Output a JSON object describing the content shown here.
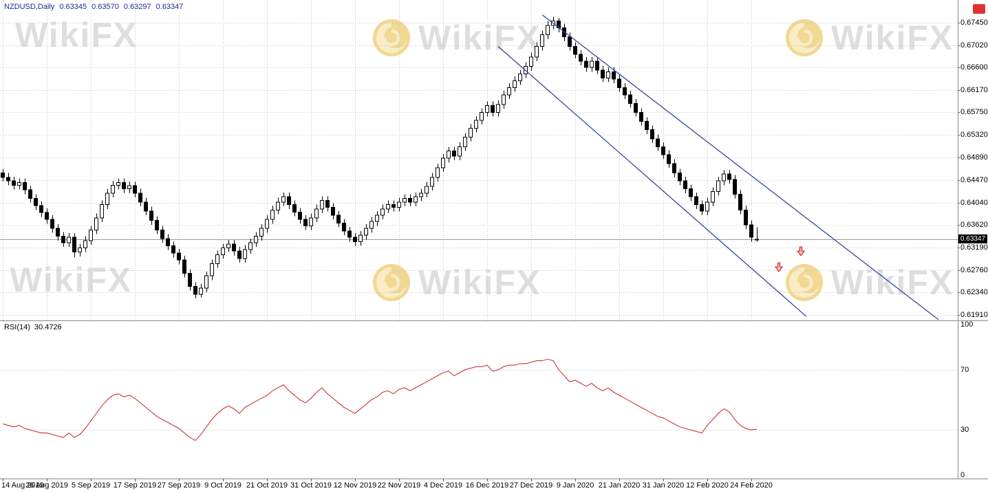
{
  "header": {
    "symbol_period": "NZDUSD,Daily",
    "open": "0.63345",
    "high": "0.63570",
    "low": "0.63297",
    "close": "0.63347"
  },
  "rsi_label": {
    "name": "RSI(14)",
    "value": "30.4726"
  },
  "price_badge": "0.63347",
  "watermark": {
    "text": "WikiFX"
  },
  "colors": {
    "bull_fill": "#ffffff",
    "bear_fill": "#000000",
    "candle_outline": "#000000",
    "trendline": "#3344a8",
    "rsi_line": "#cc3333",
    "grid": "#c4c4c4",
    "separator": "#888888",
    "axis_text": "#000000",
    "header_text": "#1b2a8f",
    "watermark_text": "#d6d6d6",
    "watermark_gold": "#e7ba3b",
    "watermark_gold_light": "#f7dd94",
    "arrow": "#cc2222",
    "arrow_fill": "#f6caca",
    "badge_bg": "#000000",
    "badge_text": "#ffffff",
    "corner_icon": "#e03030",
    "current_price_line": "#9a9a9a"
  },
  "chart_data": [
    {
      "type": "candlestick",
      "symbol": "NZDUSD",
      "timeframe": "Daily",
      "title": "NZDUSD,Daily",
      "current_price": 0.63347,
      "ylim": [
        0.6181,
        0.6788
      ],
      "y_axis_labels": [
        "0.67450",
        "0.67020",
        "0.66600",
        "0.66170",
        "0.65750",
        "0.65320",
        "0.64890",
        "0.64470",
        "0.64040",
        "0.63620",
        "0.63190",
        "0.62760",
        "0.62340",
        "0.61910"
      ],
      "x_tick_labels": [
        "14 Aug 2019",
        "26 Aug 2019",
        "5 Sep 2019",
        "17 Sep 2019",
        "27 Sep 2019",
        "9 Oct 2019",
        "21 Oct 2019",
        "31 Oct 2019",
        "12 Nov 2019",
        "22 Nov 2019",
        "4 Dec 2019",
        "16 Dec 2019",
        "27 Dec 2019",
        "9 Jan 2020",
        "21 Jan 2020",
        "31 Jan 2020",
        "12 Feb 2020",
        "24 Feb 2020"
      ],
      "x_tick_indices": [
        0,
        8,
        16,
        24,
        32,
        40,
        48,
        56,
        64,
        72,
        80,
        88,
        96,
        104,
        112,
        120,
        128,
        136
      ],
      "candles": [
        [
          0.646,
          0.6468,
          0.6444,
          0.6452
        ],
        [
          0.6452,
          0.646,
          0.6437,
          0.6445
        ],
        [
          0.6445,
          0.6453,
          0.6429,
          0.6437
        ],
        [
          0.6437,
          0.645,
          0.6429,
          0.6442
        ],
        [
          0.6442,
          0.645,
          0.642,
          0.6428
        ],
        [
          0.6428,
          0.6436,
          0.6404,
          0.6412
        ],
        [
          0.6412,
          0.642,
          0.639,
          0.6398
        ],
        [
          0.6398,
          0.6406,
          0.6377,
          0.6385
        ],
        [
          0.6385,
          0.6393,
          0.6364,
          0.6372
        ],
        [
          0.6372,
          0.638,
          0.6347,
          0.6355
        ],
        [
          0.6355,
          0.6363,
          0.6332,
          0.634
        ],
        [
          0.634,
          0.6348,
          0.632,
          0.6328
        ],
        [
          0.6328,
          0.6346,
          0.632,
          0.6338
        ],
        [
          0.6338,
          0.6346,
          0.63,
          0.631
        ],
        [
          0.631,
          0.6326,
          0.6302,
          0.6318
        ],
        [
          0.6318,
          0.634,
          0.631,
          0.6332
        ],
        [
          0.6332,
          0.636,
          0.6324,
          0.6352
        ],
        [
          0.6352,
          0.6383,
          0.6344,
          0.6375
        ],
        [
          0.6375,
          0.6408,
          0.6367,
          0.64
        ],
        [
          0.64,
          0.643,
          0.6392,
          0.6422
        ],
        [
          0.6422,
          0.6445,
          0.6414,
          0.6437
        ],
        [
          0.6437,
          0.645,
          0.6429,
          0.6442
        ],
        [
          0.6442,
          0.645,
          0.6422,
          0.643
        ],
        [
          0.643,
          0.6444,
          0.6422,
          0.6436
        ],
        [
          0.6436,
          0.6444,
          0.6414,
          0.6422
        ],
        [
          0.6422,
          0.643,
          0.6397,
          0.6405
        ],
        [
          0.6405,
          0.6413,
          0.638,
          0.6388
        ],
        [
          0.6388,
          0.6396,
          0.6362,
          0.637
        ],
        [
          0.637,
          0.6378,
          0.6344,
          0.6352
        ],
        [
          0.6352,
          0.636,
          0.6328,
          0.6336
        ],
        [
          0.6336,
          0.6344,
          0.6314,
          0.6322
        ],
        [
          0.6322,
          0.633,
          0.63,
          0.6308
        ],
        [
          0.6308,
          0.6316,
          0.6287,
          0.6295
        ],
        [
          0.6295,
          0.6303,
          0.6262,
          0.627
        ],
        [
          0.627,
          0.6278,
          0.6237,
          0.6245
        ],
        [
          0.6245,
          0.6253,
          0.6222,
          0.623
        ],
        [
          0.623,
          0.625,
          0.6224,
          0.6242
        ],
        [
          0.6242,
          0.6273,
          0.6234,
          0.6265
        ],
        [
          0.6265,
          0.6296,
          0.6257,
          0.6288
        ],
        [
          0.6288,
          0.6313,
          0.628,
          0.6305
        ],
        [
          0.6305,
          0.6326,
          0.6297,
          0.6318
        ],
        [
          0.6318,
          0.6333,
          0.631,
          0.6325
        ],
        [
          0.6325,
          0.6333,
          0.6304,
          0.6312
        ],
        [
          0.6312,
          0.632,
          0.629,
          0.6298
        ],
        [
          0.6298,
          0.6323,
          0.629,
          0.6315
        ],
        [
          0.6315,
          0.6336,
          0.6307,
          0.6328
        ],
        [
          0.6328,
          0.6348,
          0.632,
          0.634
        ],
        [
          0.634,
          0.6363,
          0.6332,
          0.6355
        ],
        [
          0.6355,
          0.638,
          0.6347,
          0.6372
        ],
        [
          0.6372,
          0.6398,
          0.6364,
          0.639
        ],
        [
          0.639,
          0.6413,
          0.6382,
          0.6405
        ],
        [
          0.6405,
          0.6423,
          0.6397,
          0.6415
        ],
        [
          0.6415,
          0.6423,
          0.6392,
          0.64
        ],
        [
          0.64,
          0.6408,
          0.6378,
          0.6386
        ],
        [
          0.6386,
          0.6394,
          0.6364,
          0.6372
        ],
        [
          0.6372,
          0.638,
          0.6352,
          0.636
        ],
        [
          0.636,
          0.6383,
          0.6352,
          0.6375
        ],
        [
          0.6375,
          0.64,
          0.6367,
          0.6392
        ],
        [
          0.6392,
          0.6416,
          0.6384,
          0.6408
        ],
        [
          0.6408,
          0.6416,
          0.6387,
          0.6395
        ],
        [
          0.6395,
          0.6403,
          0.6372,
          0.638
        ],
        [
          0.638,
          0.6388,
          0.6357,
          0.6365
        ],
        [
          0.6365,
          0.6373,
          0.6342,
          0.635
        ],
        [
          0.635,
          0.6358,
          0.633,
          0.6338
        ],
        [
          0.6338,
          0.6346,
          0.6322,
          0.633
        ],
        [
          0.633,
          0.635,
          0.6322,
          0.6342
        ],
        [
          0.6342,
          0.6363,
          0.6334,
          0.6355
        ],
        [
          0.6355,
          0.6376,
          0.6347,
          0.6368
        ],
        [
          0.6368,
          0.6388,
          0.636,
          0.638
        ],
        [
          0.638,
          0.64,
          0.6372,
          0.6392
        ],
        [
          0.6392,
          0.6408,
          0.6384,
          0.64
        ],
        [
          0.64,
          0.6408,
          0.6387,
          0.6395
        ],
        [
          0.6395,
          0.6413,
          0.6387,
          0.6405
        ],
        [
          0.6405,
          0.642,
          0.6397,
          0.6412
        ],
        [
          0.6412,
          0.642,
          0.6397,
          0.6405
        ],
        [
          0.6405,
          0.6423,
          0.6397,
          0.6415
        ],
        [
          0.6415,
          0.643,
          0.6407,
          0.6422
        ],
        [
          0.6422,
          0.6443,
          0.6414,
          0.6435
        ],
        [
          0.6435,
          0.646,
          0.6427,
          0.6452
        ],
        [
          0.6452,
          0.6478,
          0.6444,
          0.647
        ],
        [
          0.647,
          0.6496,
          0.6462,
          0.6488
        ],
        [
          0.6488,
          0.651,
          0.648,
          0.6502
        ],
        [
          0.6502,
          0.651,
          0.6484,
          0.6492
        ],
        [
          0.6492,
          0.6518,
          0.6484,
          0.651
        ],
        [
          0.651,
          0.6536,
          0.6502,
          0.6528
        ],
        [
          0.6528,
          0.6553,
          0.652,
          0.6545
        ],
        [
          0.6545,
          0.6568,
          0.6537,
          0.656
        ],
        [
          0.656,
          0.6583,
          0.6552,
          0.6575
        ],
        [
          0.6575,
          0.6596,
          0.6567,
          0.6588
        ],
        [
          0.6588,
          0.6596,
          0.6567,
          0.6575
        ],
        [
          0.6575,
          0.6598,
          0.6567,
          0.659
        ],
        [
          0.659,
          0.6616,
          0.6582,
          0.6608
        ],
        [
          0.6608,
          0.663,
          0.66,
          0.6622
        ],
        [
          0.6622,
          0.6643,
          0.6614,
          0.6635
        ],
        [
          0.6635,
          0.6656,
          0.6627,
          0.6648
        ],
        [
          0.6648,
          0.667,
          0.664,
          0.6662
        ],
        [
          0.6662,
          0.6688,
          0.6654,
          0.668
        ],
        [
          0.668,
          0.6708,
          0.6672,
          0.67
        ],
        [
          0.67,
          0.673,
          0.6692,
          0.6722
        ],
        [
          0.6722,
          0.6748,
          0.6714,
          0.674
        ],
        [
          0.674,
          0.6756,
          0.6732,
          0.6748
        ],
        [
          0.6748,
          0.6754,
          0.6727,
          0.6735
        ],
        [
          0.6735,
          0.6743,
          0.671,
          0.6718
        ],
        [
          0.6718,
          0.6726,
          0.6692,
          0.67
        ],
        [
          0.67,
          0.6708,
          0.6677,
          0.6685
        ],
        [
          0.6685,
          0.6693,
          0.6664,
          0.6672
        ],
        [
          0.6672,
          0.668,
          0.6652,
          0.666
        ],
        [
          0.666,
          0.668,
          0.6652,
          0.6672
        ],
        [
          0.6672,
          0.668,
          0.6647,
          0.6655
        ],
        [
          0.6655,
          0.6663,
          0.6632,
          0.664
        ],
        [
          0.664,
          0.666,
          0.6632,
          0.6652
        ],
        [
          0.6652,
          0.666,
          0.663,
          0.6638
        ],
        [
          0.6638,
          0.6646,
          0.6614,
          0.6622
        ],
        [
          0.6622,
          0.663,
          0.66,
          0.6608
        ],
        [
          0.6608,
          0.6616,
          0.6584,
          0.6592
        ],
        [
          0.6592,
          0.66,
          0.6567,
          0.6575
        ],
        [
          0.6575,
          0.6583,
          0.655,
          0.6558
        ],
        [
          0.6558,
          0.6566,
          0.6534,
          0.6542
        ],
        [
          0.6542,
          0.655,
          0.6517,
          0.6525
        ],
        [
          0.6525,
          0.6533,
          0.6502,
          0.651
        ],
        [
          0.651,
          0.6518,
          0.6487,
          0.6495
        ],
        [
          0.6495,
          0.6503,
          0.647,
          0.6478
        ],
        [
          0.6478,
          0.6486,
          0.6452,
          0.646
        ],
        [
          0.646,
          0.6468,
          0.6437,
          0.6445
        ],
        [
          0.6445,
          0.6453,
          0.6422,
          0.643
        ],
        [
          0.643,
          0.6438,
          0.6407,
          0.6415
        ],
        [
          0.6415,
          0.6423,
          0.6392,
          0.64
        ],
        [
          0.64,
          0.6408,
          0.638,
          0.6388
        ],
        [
          0.6388,
          0.6413,
          0.638,
          0.6405
        ],
        [
          0.6405,
          0.6433,
          0.6397,
          0.6425
        ],
        [
          0.6425,
          0.6453,
          0.6417,
          0.6445
        ],
        [
          0.6445,
          0.6466,
          0.6437,
          0.6458
        ],
        [
          0.6458,
          0.6466,
          0.644,
          0.6448
        ],
        [
          0.6448,
          0.6456,
          0.6412,
          0.642
        ],
        [
          0.642,
          0.6428,
          0.6382,
          0.639
        ],
        [
          0.639,
          0.6398,
          0.6354,
          0.6362
        ],
        [
          0.6362,
          0.637,
          0.633,
          0.6338
        ],
        [
          0.63345,
          0.6357,
          0.63297,
          0.63347
        ]
      ],
      "trendlines": [
        {
          "name": "upper-channel-line",
          "from_index": 98,
          "from_price": 0.676,
          "to_index": 170,
          "to_price": 0.6182
        },
        {
          "name": "lower-channel-line",
          "from_index": 90,
          "from_price": 0.67,
          "to_index": 146,
          "to_price": 0.6188
        }
      ],
      "arrows": [
        {
          "index": 141,
          "price": 0.6282,
          "direction": "down"
        },
        {
          "index": 145,
          "price": 0.6312,
          "direction": "down"
        }
      ]
    },
    {
      "type": "line",
      "name": "RSI(14)",
      "current_value": 30.4726,
      "ylim": [
        0,
        100
      ],
      "levels": [
        30,
        70
      ],
      "y_axis_labels": [
        "100",
        "70",
        "30",
        "0"
      ],
      "values": [
        34,
        33,
        32,
        33,
        31,
        30,
        29,
        28,
        28,
        27,
        26,
        25,
        28,
        25,
        27,
        31,
        36,
        41,
        46,
        50,
        53,
        54,
        52,
        53,
        51,
        48,
        45,
        42,
        39,
        37,
        35,
        33,
        31,
        28,
        25,
        23,
        27,
        32,
        37,
        41,
        44,
        46,
        44,
        41,
        45,
        47,
        49,
        51,
        53,
        56,
        58,
        60,
        56,
        53,
        50,
        48,
        51,
        55,
        58,
        54,
        51,
        48,
        45,
        43,
        41,
        44,
        47,
        50,
        52,
        55,
        56,
        54,
        57,
        58,
        56,
        58,
        60,
        62,
        64,
        66,
        68,
        69,
        66,
        68,
        70,
        71,
        72,
        72,
        73,
        69,
        70,
        72,
        73,
        73,
        74,
        74,
        75,
        76,
        76,
        77,
        76,
        70,
        66,
        62,
        63,
        61,
        59,
        61,
        58,
        56,
        58,
        55,
        53,
        51,
        49,
        47,
        45,
        43,
        41,
        39,
        38,
        36,
        34,
        32,
        31,
        30,
        29,
        28,
        33,
        37,
        41,
        44,
        42,
        37,
        33,
        31,
        30,
        30.4726
      ]
    }
  ]
}
